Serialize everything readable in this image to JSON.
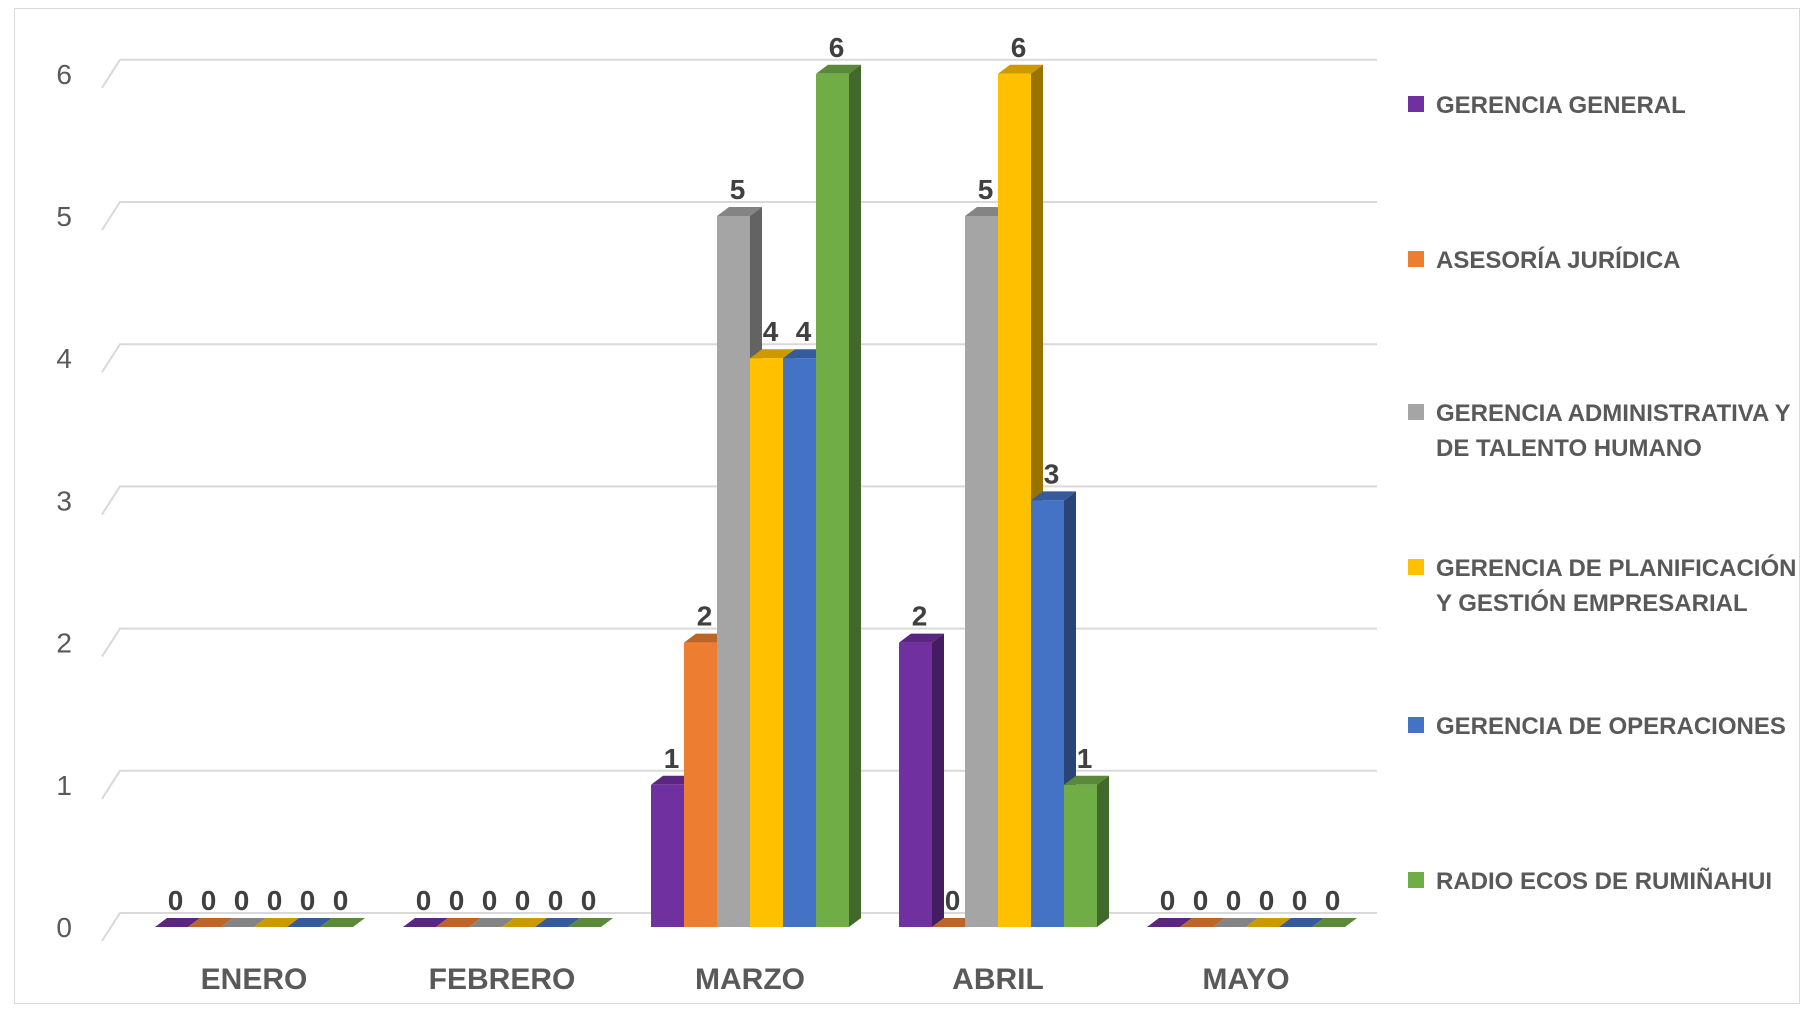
{
  "chart_data": {
    "type": "bar",
    "style": "3d-clustered-column",
    "title": "",
    "xlabel": "",
    "ylabel": "",
    "ylim": [
      0,
      6
    ],
    "yticks": [
      "0",
      "1",
      "2",
      "3",
      "4",
      "5",
      "6"
    ],
    "grid": true,
    "legend_position": "right",
    "categories": [
      "ENERO",
      "FEBRERO",
      "MARZO",
      "ABRIL",
      "MAYO"
    ],
    "series": [
      {
        "name": "GERENCIA GENERAL",
        "color": "#7030a0",
        "values": [
          0,
          0,
          1,
          2,
          0
        ]
      },
      {
        "name": "ASESORÍA JURÍDICA",
        "color": "#ed7d31",
        "values": [
          0,
          0,
          2,
          0,
          0
        ]
      },
      {
        "name": "GERENCIA ADMINISTRATIVA Y DE TALENTO HUMANO",
        "color": "#a5a5a5",
        "values": [
          0,
          0,
          5,
          5,
          0
        ]
      },
      {
        "name": "GERENCIA DE PLANIFICACIÓN Y GESTIÓN EMPRESARIAL",
        "color": "#ffc000",
        "values": [
          0,
          0,
          4,
          6,
          0
        ]
      },
      {
        "name": "GERENCIA DE OPERACIONES",
        "color": "#4472c4",
        "values": [
          0,
          0,
          4,
          3,
          0
        ]
      },
      {
        "name": "RADIO ECOS DE RUMIÑAHUI",
        "color": "#70ad47",
        "values": [
          0,
          0,
          6,
          1,
          0
        ]
      }
    ]
  }
}
